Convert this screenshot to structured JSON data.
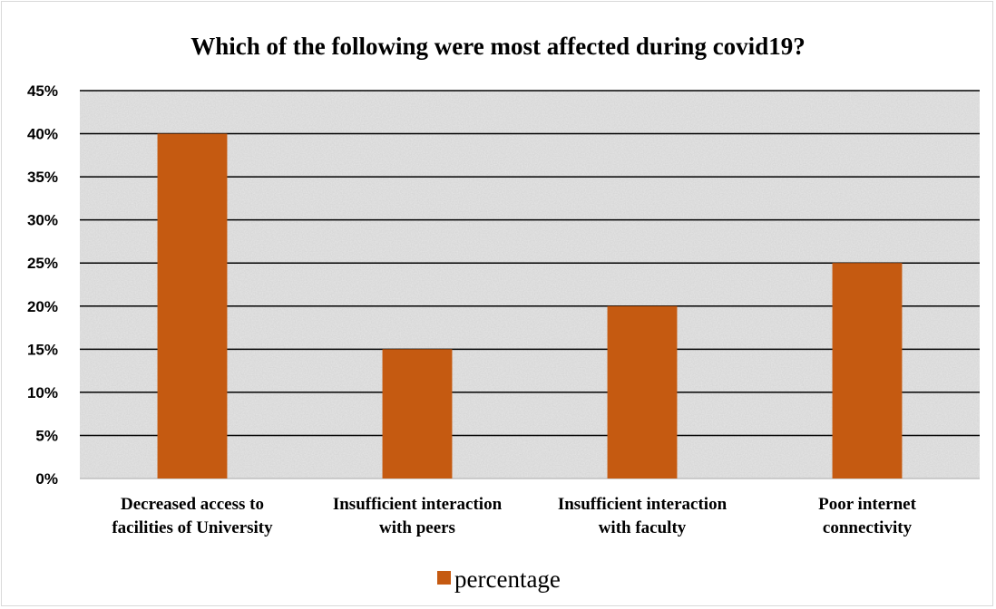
{
  "chart_data": {
    "type": "bar",
    "title": "Which of the following were most affected during covid19?",
    "xlabel": "",
    "ylabel": "",
    "categories": [
      [
        "Decreased access to",
        "facilities of University"
      ],
      [
        "Insufficient interaction",
        "with peers"
      ],
      [
        "Insufficient interaction",
        "with faculty"
      ],
      [
        "Poor internet",
        "connectivity"
      ]
    ],
    "series": [
      {
        "name": "percentage",
        "values": [
          40,
          15,
          20,
          25
        ],
        "color": "#C55A11"
      }
    ],
    "ylim": [
      0,
      45
    ],
    "yticks": [
      0,
      5,
      10,
      15,
      20,
      25,
      30,
      35,
      40,
      45
    ],
    "ytick_format": "percent",
    "grid": true,
    "legend_position": "bottom",
    "plot_background": "#e6e6e6"
  }
}
